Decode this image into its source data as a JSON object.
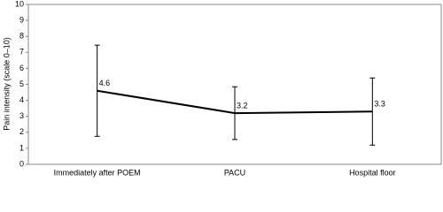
{
  "chart_data": {
    "type": "line",
    "y_label": "Pain intensity (scale 0–10)",
    "categories": [
      "Immediately after POEM",
      "PACU",
      "Hospital floor"
    ],
    "values": [
      4.6,
      3.2,
      3.3
    ],
    "errors": [
      2.85,
      1.65,
      2.1
    ],
    "color": "#000000",
    "ylim": [
      0,
      10
    ],
    "yticks": [
      0,
      1,
      2,
      3,
      4,
      5,
      6,
      7,
      8,
      9,
      10
    ],
    "grid": false
  }
}
